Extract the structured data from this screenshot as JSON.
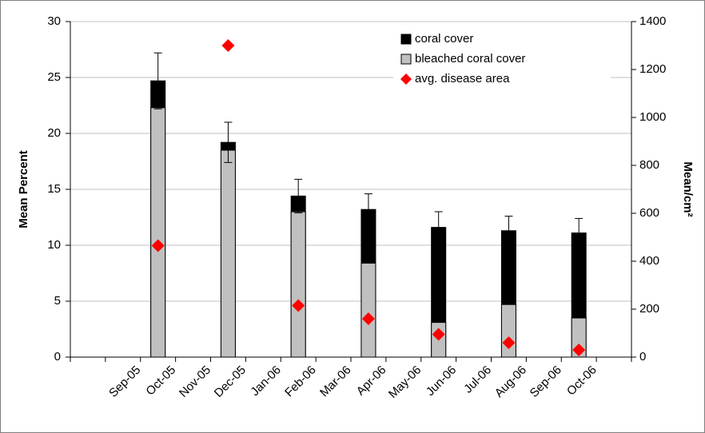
{
  "chart_data": {
    "type": "bar",
    "categories": [
      null,
      "Sep-05",
      "Oct-05",
      "Nov-05",
      "Dec-05",
      "Jan-06",
      "Feb-06",
      "Mar-06",
      "Apr-06",
      "May-06",
      "Jun-06",
      "Jul-06",
      "Aug-06",
      "Sep-06",
      "Oct-06",
      null
    ],
    "y_label": "Mean Percent",
    "y2_label": "Mean/cm²",
    "ylim": [
      0,
      30
    ],
    "yticks": [
      0,
      5,
      10,
      15,
      20,
      25,
      30
    ],
    "y2lim": [
      0,
      1400
    ],
    "y2ticks": [
      0,
      200,
      400,
      600,
      800,
      1000,
      1200,
      1400
    ],
    "grid": true,
    "legend": "top-right",
    "series": [
      {
        "name": "coral cover",
        "color": "#000000",
        "kind": "bar",
        "values": [
          null,
          null,
          24.7,
          null,
          19.2,
          null,
          14.4,
          null,
          13.2,
          null,
          11.6,
          null,
          11.3,
          null,
          11.1,
          null
        ],
        "errors": [
          null,
          null,
          2.5,
          null,
          1.8,
          null,
          1.5,
          null,
          1.4,
          null,
          1.4,
          null,
          1.3,
          null,
          1.3,
          null
        ]
      },
      {
        "name": "bleached coral cover",
        "color": "#c0c0c0",
        "kind": "bar",
        "values": [
          null,
          null,
          22.3,
          null,
          18.5,
          null,
          13.0,
          null,
          8.4,
          null,
          3.1,
          null,
          4.7,
          null,
          3.5,
          null
        ]
      },
      {
        "name": "avg. disease area",
        "color": "#ff0000",
        "kind": "diamond",
        "axis": "y2",
        "values": [
          null,
          null,
          465,
          null,
          1300,
          null,
          215,
          null,
          160,
          null,
          95,
          null,
          60,
          null,
          30,
          null
        ]
      }
    ]
  }
}
